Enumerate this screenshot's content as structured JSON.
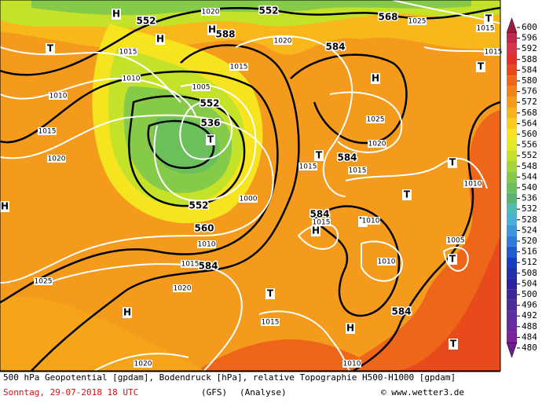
{
  "map": {
    "labels": [
      552,
      552,
      568,
      1020,
      1025,
      1015,
      588,
      "H",
      "H",
      "H",
      "H",
      "H",
      "H",
      "H",
      "H",
      "T",
      "T",
      "T",
      "T",
      "T",
      "T",
      "T",
      "T",
      "T",
      "T",
      "T",
      584,
      584,
      584,
      584,
      584,
      1015,
      1010,
      1010,
      1015,
      1020,
      1005,
      552,
      536,
      552,
      560,
      1020,
      1015,
      1025,
      1020,
      1015,
      1015,
      1010,
      1015,
      1010,
      1005,
      1010,
      1010,
      1015,
      1020,
      1025,
      1015,
      1020,
      1010,
      1000,
      1015
    ]
  },
  "legend": {
    "values": [
      600,
      596,
      592,
      588,
      584,
      580,
      576,
      572,
      568,
      564,
      560,
      556,
      552,
      548,
      544,
      540,
      536,
      532,
      528,
      524,
      520,
      516,
      512,
      508,
      504,
      500,
      496,
      492,
      488,
      484,
      480
    ],
    "colors": [
      "#a01c3c",
      "#c0284c",
      "#d83448",
      "#e2302a",
      "#e84a1c",
      "#ee661a",
      "#f2821a",
      "#f69c1a",
      "#f9b41c",
      "#fbcc1c",
      "#f6e41e",
      "#e2ea22",
      "#c4e22a",
      "#a4d63a",
      "#86ca4a",
      "#6cc05c",
      "#58b470",
      "#4cbcb4",
      "#46b2d8",
      "#3c98de",
      "#2e7cdc",
      "#205cce",
      "#183ec0",
      "#2030a8",
      "#2c229e",
      "#3c2698",
      "#4c2c9c",
      "#5c2ea0",
      "#6c28a0",
      "#7c20a0",
      "#6c1c8c"
    ]
  },
  "footer": {
    "description": "500 hPa Geopotential [gpdam], Bodendruck [hPa], relative Topographie H500-H1000 [gpdam]",
    "date": "Sonntag, 29-07-2018  18 UTC",
    "model": "(GFS)",
    "run": "(Analyse)",
    "credit": "© www.wetter3.de"
  }
}
